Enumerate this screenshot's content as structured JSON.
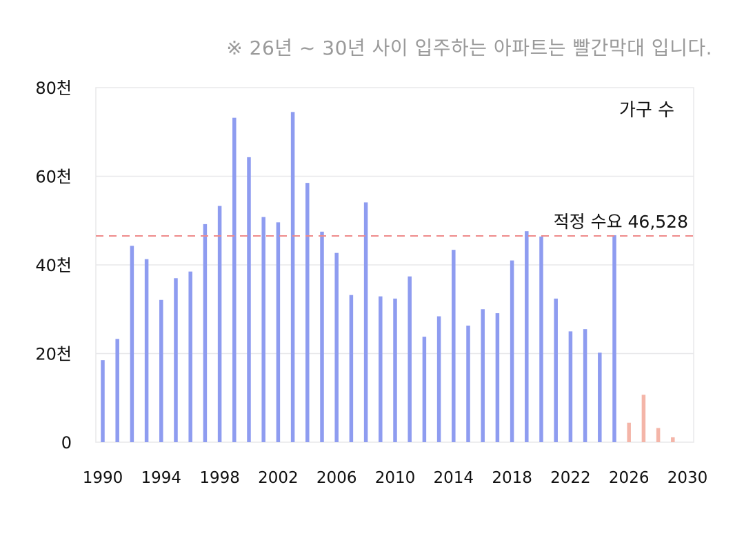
{
  "note": "※ 26년 ~ 30년 사이 입주하는 아파트는 빨간막대 입니다.",
  "chart_data": {
    "type": "bar",
    "legend": "가구 수",
    "reference_line": {
      "label": "적정 수요 46,528",
      "value": 46528,
      "color": "#ee8a8a"
    },
    "ylim": [
      0,
      80000
    ],
    "yticks": [
      {
        "value": 0,
        "label": "0"
      },
      {
        "value": 20000,
        "label": "20천"
      },
      {
        "value": 40000,
        "label": "40천"
      },
      {
        "value": 60000,
        "label": "60천"
      },
      {
        "value": 80000,
        "label": "80천"
      }
    ],
    "xlim": [
      1990,
      2030
    ],
    "xticks": [
      "1990",
      "1994",
      "1998",
      "2002",
      "2006",
      "2010",
      "2014",
      "2018",
      "2022",
      "2026",
      "2030"
    ],
    "colors": {
      "supply": "#8e9cf0",
      "future": "#f4b5a8",
      "grid": "#e8e8ea"
    },
    "series": [
      {
        "x": [
          1990,
          1991,
          1992,
          1993,
          1994,
          1995,
          1996,
          1997,
          1998,
          1999,
          2000,
          2001,
          2002,
          2003,
          2004,
          2005,
          2006,
          2007,
          2008,
          2009,
          2010,
          2011,
          2012,
          2013,
          2014,
          2015,
          2016,
          2017,
          2018,
          2019,
          2020,
          2021,
          2022,
          2023,
          2024,
          2025
        ],
        "values": [
          18500,
          23300,
          44300,
          41300,
          32100,
          37000,
          38500,
          49200,
          53300,
          73200,
          64300,
          50800,
          49600,
          74500,
          58500,
          47500,
          42700,
          33200,
          54100,
          32900,
          32400,
          37400,
          23800,
          28400,
          43400,
          26300,
          30000,
          29100,
          41000,
          47600,
          46400,
          32400,
          25000,
          25500,
          20200,
          46700
        ]
      },
      {
        "x": [
          2026,
          2027,
          2028,
          2029
        ],
        "values": [
          4400,
          10700,
          3200,
          1100
        ]
      }
    ]
  }
}
